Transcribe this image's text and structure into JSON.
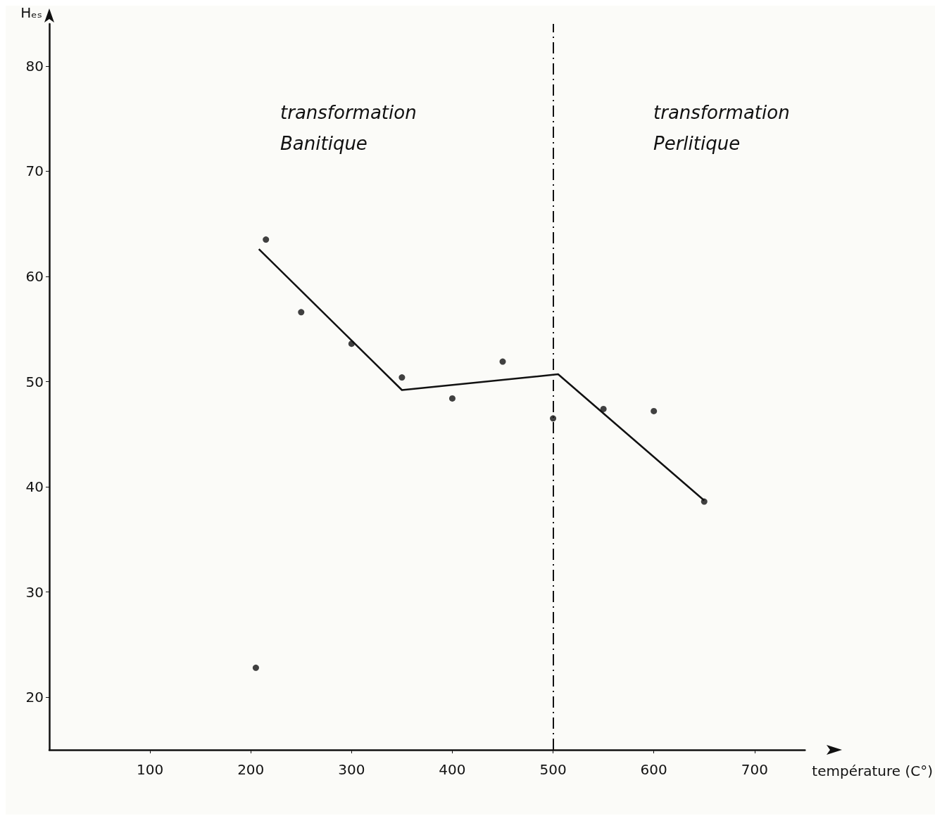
{
  "chart_data": {
    "type": "scatter",
    "xlabel": "température (C°)",
    "ylabel": "Hₑₛ",
    "xlim": [
      0,
      750
    ],
    "xticks": [
      100,
      200,
      300,
      400,
      500,
      600,
      700
    ],
    "ylim": [
      15,
      84
    ],
    "yticks": [
      20,
      30,
      40,
      50,
      60,
      70,
      80
    ],
    "grid": false,
    "series": [
      {
        "marker": "circle",
        "color": "#111111",
        "x": [
          205,
          215,
          250,
          300,
          350,
          400,
          450,
          500,
          550,
          600,
          650
        ],
        "values": [
          22.8,
          63.5,
          56.6,
          53.6,
          50.4,
          48.4,
          51.9,
          46.5,
          47.4,
          47.2,
          38.6
        ]
      },
      {
        "type": "line",
        "marker": "none",
        "color": "#111111",
        "x": [
          208,
          350,
          505,
          650
        ],
        "values": [
          62.6,
          49.2,
          50.7,
          38.7
        ]
      }
    ],
    "ref_lines": [
      {
        "axis": "x",
        "value": 500,
        "line_style": "dashed",
        "color": "#111111"
      }
    ],
    "annotations": [
      "transformation\nBanitique",
      "transformation\nPerlitique"
    ]
  }
}
